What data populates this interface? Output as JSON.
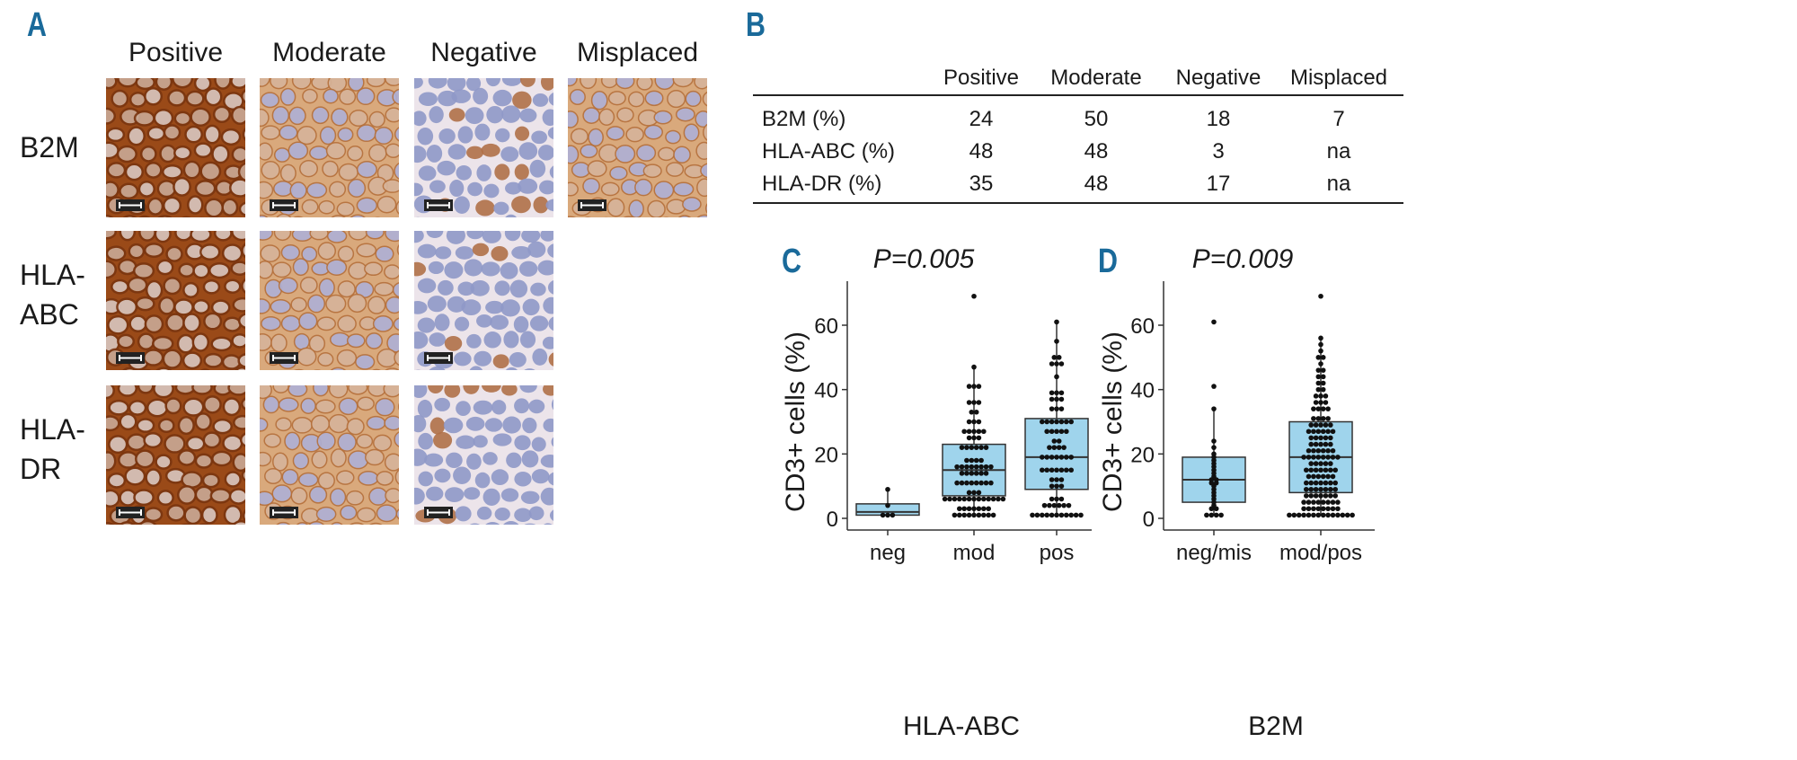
{
  "panels": {
    "a": "A",
    "b": "B",
    "c": "C",
    "d": "D"
  },
  "panel_a": {
    "columns": [
      "Positive",
      "Moderate",
      "Negative",
      "Misplaced"
    ],
    "rows": [
      {
        "label": [
          "B2M"
        ],
        "images": 4
      },
      {
        "label": [
          "HLA-",
          "ABC"
        ],
        "images": 3
      },
      {
        "label": [
          "HLA-",
          "DR"
        ],
        "images": 3
      }
    ],
    "stain_colors": {
      "positive": "#a0501c",
      "moderate": "#c98a55",
      "negative": "#8f98c8",
      "background": "#efe6e0"
    }
  },
  "table": {
    "headers": [
      "",
      "Positive",
      "Moderate",
      "Negative",
      "Misplaced"
    ],
    "rows": [
      [
        "B2M (%)",
        "24",
        "50",
        "18",
        "7"
      ],
      [
        "HLA-ABC (%)",
        "48",
        "48",
        "3",
        "na"
      ],
      [
        "HLA-DR (%)",
        "35",
        "48",
        "17",
        "na"
      ]
    ]
  },
  "chart_data": [
    {
      "type": "box",
      "annotation": "P=0.005",
      "xlabel": "HLA-ABC",
      "ylabel": "CD3+ cells (%)",
      "ylim": [
        -3,
        72
      ],
      "yticks": [
        "0",
        "20",
        "40",
        "60"
      ],
      "box_color": "#9fd4ec",
      "categories": [
        "neg",
        "mod",
        "pos"
      ],
      "boxes": [
        {
          "q1": 1,
          "median": 2,
          "q3": 4.5,
          "whisker_low": 1,
          "whisker_high": 9,
          "points": [
            1,
            1,
            1,
            4,
            9
          ]
        },
        {
          "q1": 7,
          "median": 15,
          "q3": 23,
          "whisker_low": 1,
          "whisker_high": 47,
          "points": [
            1,
            1,
            1,
            1,
            1,
            1,
            1,
            1,
            1,
            3,
            3,
            3,
            3,
            3,
            3,
            3,
            6,
            6,
            6,
            6,
            6,
            6,
            6,
            6,
            6,
            6,
            6,
            6,
            6,
            8,
            8,
            8,
            11,
            11,
            11,
            11,
            11,
            11,
            11,
            11,
            14,
            14,
            14,
            14,
            14,
            14,
            16,
            16,
            16,
            16,
            16,
            16,
            16,
            16,
            18,
            18,
            18,
            18,
            22,
            22,
            22,
            22,
            22,
            22,
            25,
            25,
            25,
            27,
            27,
            27,
            27,
            27,
            30,
            30,
            30,
            33,
            33,
            36,
            36,
            36,
            41,
            41,
            41,
            47,
            69
          ]
        },
        {
          "q1": 9,
          "median": 19,
          "q3": 31,
          "whisker_low": 1,
          "whisker_high": 61,
          "points": [
            1,
            1,
            1,
            1,
            1,
            1,
            1,
            1,
            1,
            1,
            1,
            4,
            4,
            4,
            4,
            4,
            4,
            6,
            6,
            6,
            10,
            10,
            10,
            12,
            12,
            12,
            15,
            15,
            15,
            15,
            15,
            15,
            15,
            19,
            19,
            19,
            19,
            19,
            19,
            19,
            22,
            22,
            22,
            22,
            24,
            24,
            27,
            27,
            27,
            27,
            27,
            30,
            30,
            30,
            30,
            30,
            30,
            30,
            34,
            34,
            34,
            37,
            37,
            37,
            39,
            39,
            39,
            44,
            48,
            48,
            48,
            50,
            50,
            55,
            61
          ]
        }
      ]
    },
    {
      "type": "box",
      "annotation": "P=0.009",
      "xlabel": "B2M",
      "ylabel": "CD3+ cells (%)",
      "ylim": [
        -3,
        72
      ],
      "yticks": [
        "0",
        "20",
        "40",
        "60"
      ],
      "box_color": "#9fd4ec",
      "categories": [
        "neg/mis",
        "mod/pos"
      ],
      "boxes": [
        {
          "q1": 5,
          "median": 12,
          "q3": 19,
          "whisker_low": 1,
          "whisker_high": 34,
          "points": [
            1,
            1,
            1,
            1,
            3,
            3,
            4,
            5,
            6,
            7,
            8,
            9,
            10,
            11,
            11,
            12,
            12,
            13,
            14,
            15,
            16,
            17,
            18,
            19,
            20,
            22,
            24,
            34,
            41,
            61
          ]
        },
        {
          "q1": 8,
          "median": 19,
          "q3": 30,
          "whisker_low": 1,
          "whisker_high": 56,
          "points": [
            1,
            1,
            1,
            1,
            1,
            1,
            1,
            1,
            1,
            1,
            1,
            1,
            1,
            1,
            3,
            3,
            3,
            3,
            3,
            3,
            3,
            3,
            5,
            5,
            5,
            5,
            5,
            5,
            5,
            5,
            7,
            7,
            7,
            7,
            7,
            7,
            7,
            9,
            9,
            9,
            9,
            9,
            9,
            9,
            11,
            11,
            11,
            11,
            11,
            11,
            11,
            13,
            13,
            13,
            13,
            13,
            13,
            15,
            15,
            15,
            15,
            15,
            15,
            15,
            17,
            17,
            17,
            17,
            17,
            19,
            19,
            19,
            19,
            19,
            19,
            19,
            19,
            21,
            21,
            21,
            21,
            21,
            21,
            23,
            23,
            23,
            23,
            23,
            25,
            25,
            25,
            25,
            25,
            27,
            27,
            27,
            27,
            27,
            27,
            29,
            29,
            29,
            29,
            29,
            31,
            31,
            31,
            31,
            34,
            34,
            34,
            34,
            36,
            36,
            36,
            38,
            38,
            38,
            40,
            40,
            42,
            42,
            44,
            44,
            46,
            46,
            48,
            50,
            50,
            52,
            54,
            56,
            69
          ]
        }
      ]
    }
  ]
}
